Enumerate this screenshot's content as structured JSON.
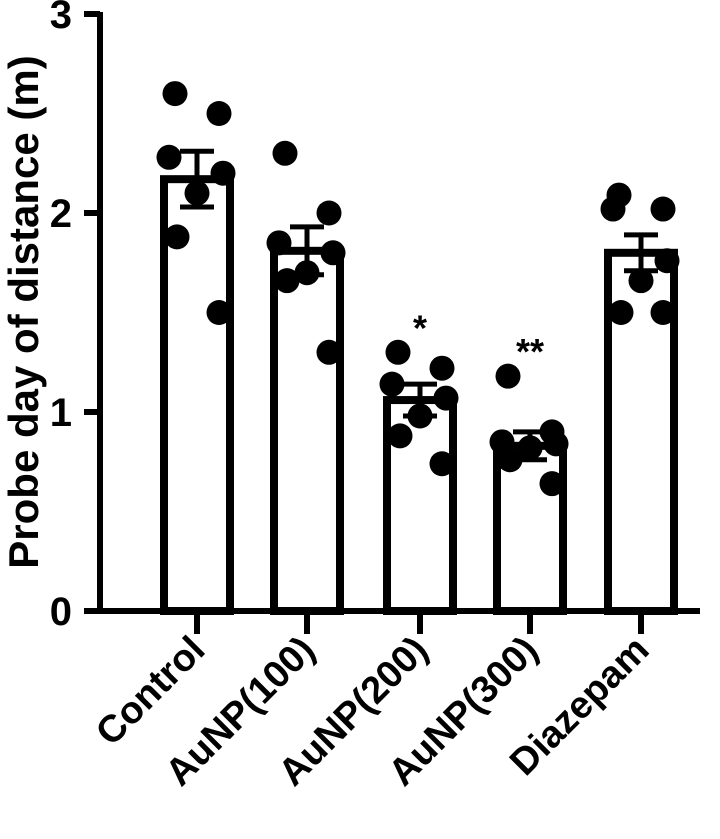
{
  "chart_data": {
    "type": "bar",
    "title": "",
    "xlabel": "",
    "ylabel": "Probe day of distance (m)",
    "ylim": [
      0,
      3
    ],
    "yticks": [
      0,
      1,
      2,
      3
    ],
    "grid": false,
    "categories": [
      "Control",
      "AuNP(100)",
      "AuNP(200)",
      "AuNP(300)",
      "Diazepam"
    ],
    "values": [
      2.17,
      1.81,
      1.06,
      0.83,
      1.8
    ],
    "errors": [
      0.14,
      0.12,
      0.08,
      0.07,
      0.09
    ],
    "significance": [
      "",
      "",
      "*",
      "**",
      ""
    ],
    "points": [
      [
        2.6,
        2.5,
        2.28,
        2.2,
        2.1,
        1.88,
        1.5
      ],
      [
        2.3,
        2.0,
        1.85,
        1.8,
        1.7,
        1.66,
        1.3
      ],
      [
        1.3,
        1.22,
        1.14,
        1.07,
        0.98,
        0.88,
        0.74
      ],
      [
        1.18,
        0.9,
        0.85,
        0.84,
        0.82,
        0.76,
        0.64
      ],
      [
        2.09,
        2.02,
        2.02,
        1.76,
        1.66,
        1.5,
        1.5
      ]
    ],
    "bar_color": "#ffffff",
    "edge_color": "#000000",
    "point_color": "#000000"
  }
}
